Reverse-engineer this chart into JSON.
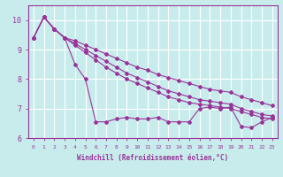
{
  "xlabel": "Windchill (Refroidissement éolien,°C)",
  "xlim_min": -0.5,
  "xlim_max": 23.5,
  "ylim_min": 6.0,
  "ylim_max": 10.5,
  "yticks": [
    6,
    7,
    8,
    9,
    10
  ],
  "xticks": [
    0,
    1,
    2,
    3,
    4,
    5,
    6,
    7,
    8,
    9,
    10,
    11,
    12,
    13,
    14,
    15,
    16,
    17,
    18,
    19,
    20,
    21,
    22,
    23
  ],
  "bg_color": "#c8ecec",
  "line_color": "#993399",
  "grid_color": "#ffffff",
  "series": [
    [
      9.4,
      10.1,
      9.7,
      9.4,
      8.5,
      8.0,
      6.55,
      6.55,
      6.65,
      6.7,
      6.65,
      6.65,
      6.7,
      6.55,
      6.55,
      6.55,
      7.0,
      7.05,
      7.0,
      7.05,
      6.4,
      6.35,
      6.55,
      6.7
    ],
    [
      9.4,
      10.1,
      9.7,
      9.4,
      9.15,
      8.9,
      8.65,
      8.4,
      8.2,
      8.0,
      7.85,
      7.7,
      7.55,
      7.4,
      7.3,
      7.2,
      7.15,
      7.1,
      7.05,
      7.0,
      6.9,
      6.8,
      6.7,
      6.65
    ],
    [
      9.4,
      10.1,
      9.7,
      9.4,
      9.2,
      9.0,
      8.8,
      8.6,
      8.4,
      8.2,
      8.05,
      7.9,
      7.75,
      7.6,
      7.5,
      7.4,
      7.3,
      7.25,
      7.2,
      7.15,
      7.0,
      6.9,
      6.8,
      6.75
    ],
    [
      9.4,
      10.1,
      9.7,
      9.4,
      9.3,
      9.15,
      9.0,
      8.85,
      8.7,
      8.55,
      8.4,
      8.3,
      8.15,
      8.05,
      7.95,
      7.85,
      7.75,
      7.65,
      7.6,
      7.55,
      7.4,
      7.3,
      7.2,
      7.1
    ]
  ]
}
